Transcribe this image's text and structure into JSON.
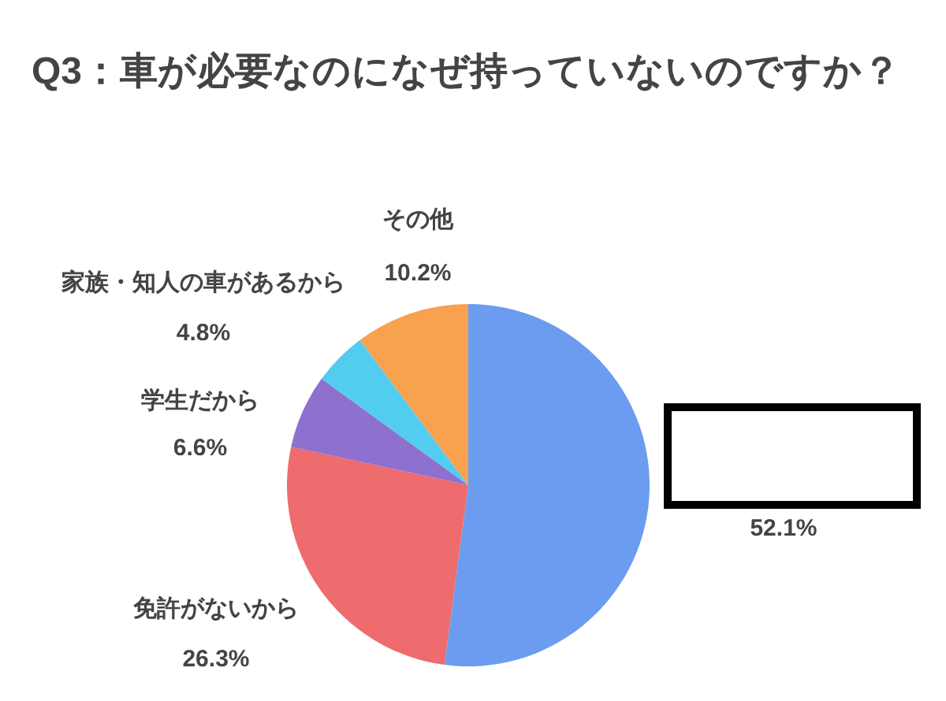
{
  "chart_data": {
    "type": "pie",
    "title": "Q3：車が必要なのになぜ持っていないのですか？",
    "categories": [
      null,
      "免許がないから",
      "学生だから",
      "家族・知人の車があるから",
      "その他"
    ],
    "values": [
      52.1,
      26.3,
      6.6,
      4.8,
      10.2
    ],
    "colors": [
      "#6b9cf0",
      "#ee6b6e",
      "#8e70cf",
      "#52cdf0",
      "#f8a14f"
    ],
    "value_labels": [
      "52.1%",
      "26.3%",
      "6.6%",
      "4.8%",
      "10.2%"
    ]
  }
}
